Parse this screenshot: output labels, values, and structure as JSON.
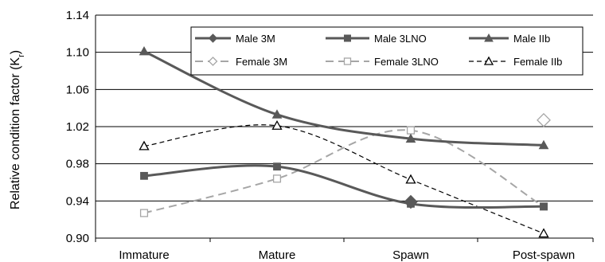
{
  "chart_data": {
    "type": "line",
    "categories": [
      "Immature",
      "Mature",
      "Spawn",
      "Post-spawn"
    ],
    "ylabel": "Relative condition factor (K",
    "ylabel_sub": "r",
    "ylabel_close": ")",
    "ylim": [
      0.9,
      1.14
    ],
    "yticks": [
      "0.90",
      "0.94",
      "0.98",
      "1.02",
      "1.06",
      "1.10",
      "1.14"
    ],
    "grid": true,
    "legend_position": "top-right",
    "series": [
      {
        "name": "Male 3M",
        "values": [
          null,
          null,
          0.939,
          null
        ],
        "color": "#595959",
        "dash": "solid",
        "marker": "diamond-filled"
      },
      {
        "name": "Male 3LNO",
        "values": [
          0.967,
          0.977,
          0.937,
          0.934
        ],
        "color": "#595959",
        "dash": "solid",
        "marker": "square-filled"
      },
      {
        "name": "Male IIb",
        "values": [
          1.101,
          1.033,
          1.007,
          1.0
        ],
        "color": "#595959",
        "dash": "solid",
        "marker": "triangle-filled"
      },
      {
        "name": "Female 3M",
        "values": [
          null,
          null,
          null,
          1.027
        ],
        "color": "#a6a6a6",
        "dash": "long",
        "marker": "diamond-open"
      },
      {
        "name": "Female 3LNO",
        "values": [
          0.927,
          0.964,
          1.016,
          0.934
        ],
        "color": "#a6a6a6",
        "dash": "long",
        "marker": "square-open"
      },
      {
        "name": "Female IIb",
        "values": [
          0.999,
          1.021,
          0.963,
          0.905
        ],
        "color": "#000000",
        "dash": "short",
        "marker": "triangle-open"
      }
    ]
  }
}
